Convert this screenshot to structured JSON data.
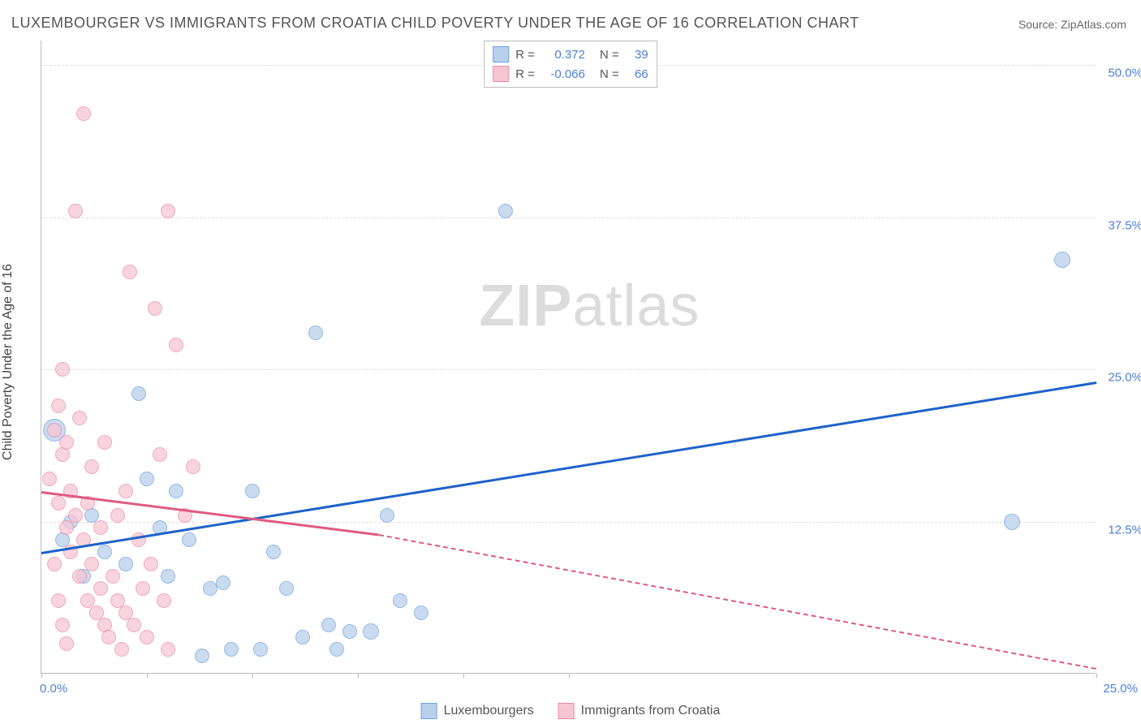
{
  "title": "LUXEMBOURGER VS IMMIGRANTS FROM CROATIA CHILD POVERTY UNDER THE AGE OF 16 CORRELATION CHART",
  "source": "Source: ZipAtlas.com",
  "watermark": {
    "bold": "ZIP",
    "light": "atlas"
  },
  "yaxis_label": "Child Poverty Under the Age of 16",
  "chart": {
    "type": "scatter",
    "xlim": [
      0,
      25
    ],
    "ylim": [
      0,
      52
    ],
    "y_gridlines": [
      12.5,
      25,
      37.5,
      50
    ],
    "y_tick_labels": [
      "12.5%",
      "25.0%",
      "37.5%",
      "50.0%"
    ],
    "x_ticks": [
      0,
      2.5,
      5,
      7.5,
      10,
      12.5,
      25
    ],
    "x_origin_label": "0.0%",
    "x_max_label": "25.0%",
    "bg_color": "#ffffff",
    "grid_color": "#dddddd",
    "axis_color": "#bbbbbb",
    "series": [
      {
        "name": "Luxembourgers",
        "fill": "#b9d0ec",
        "stroke": "#6fa3de",
        "trend_color": "#1f62c9",
        "R": "0.372",
        "N": "39",
        "trend": {
          "x1": 0,
          "y1": 10,
          "x2": 25,
          "y2": 24
        },
        "points": [
          {
            "x": 0.3,
            "y": 20,
            "r": 14
          },
          {
            "x": 0.5,
            "y": 11,
            "r": 9
          },
          {
            "x": 0.7,
            "y": 12.5,
            "r": 9
          },
          {
            "x": 1.0,
            "y": 8,
            "r": 9
          },
          {
            "x": 1.2,
            "y": 13,
            "r": 9
          },
          {
            "x": 1.5,
            "y": 10,
            "r": 9
          },
          {
            "x": 2.0,
            "y": 9,
            "r": 9
          },
          {
            "x": 2.3,
            "y": 23,
            "r": 9
          },
          {
            "x": 2.5,
            "y": 16,
            "r": 9
          },
          {
            "x": 2.8,
            "y": 12,
            "r": 9
          },
          {
            "x": 3.0,
            "y": 8,
            "r": 9
          },
          {
            "x": 3.2,
            "y": 15,
            "r": 9
          },
          {
            "x": 3.5,
            "y": 11,
            "r": 9
          },
          {
            "x": 3.8,
            "y": 1.5,
            "r": 9
          },
          {
            "x": 4.0,
            "y": 7,
            "r": 9
          },
          {
            "x": 4.3,
            "y": 7.5,
            "r": 9
          },
          {
            "x": 4.5,
            "y": 2,
            "r": 9
          },
          {
            "x": 5.0,
            "y": 15,
            "r": 9
          },
          {
            "x": 5.2,
            "y": 2,
            "r": 9
          },
          {
            "x": 5.5,
            "y": 10,
            "r": 9
          },
          {
            "x": 5.8,
            "y": 7,
            "r": 9
          },
          {
            "x": 6.2,
            "y": 3,
            "r": 9
          },
          {
            "x": 6.5,
            "y": 28,
            "r": 9
          },
          {
            "x": 6.8,
            "y": 4,
            "r": 9
          },
          {
            "x": 7.0,
            "y": 2,
            "r": 9
          },
          {
            "x": 7.3,
            "y": 3.5,
            "r": 9
          },
          {
            "x": 7.8,
            "y": 3.5,
            "r": 10
          },
          {
            "x": 8.2,
            "y": 13,
            "r": 9
          },
          {
            "x": 8.5,
            "y": 6,
            "r": 9
          },
          {
            "x": 9.0,
            "y": 5,
            "r": 9
          },
          {
            "x": 11.0,
            "y": 38,
            "r": 9
          },
          {
            "x": 23.0,
            "y": 12.5,
            "r": 10
          },
          {
            "x": 24.2,
            "y": 34,
            "r": 10
          }
        ]
      },
      {
        "name": "Immigrants from Croatia",
        "fill": "#f6c6d3",
        "stroke": "#e98fa9",
        "trend_color": "#e05a82",
        "R": "-0.066",
        "N": "66",
        "trend": {
          "x1": 0,
          "y1": 15,
          "x2": 8,
          "y2": 11.5
        },
        "trend_dash": {
          "x1": 8,
          "y1": 11.5,
          "x2": 25,
          "y2": 0.5
        },
        "points": [
          {
            "x": 0.2,
            "y": 16,
            "r": 9
          },
          {
            "x": 0.3,
            "y": 20,
            "r": 9
          },
          {
            "x": 0.4,
            "y": 22,
            "r": 9
          },
          {
            "x": 0.4,
            "y": 14,
            "r": 9
          },
          {
            "x": 0.5,
            "y": 18,
            "r": 9
          },
          {
            "x": 0.5,
            "y": 25,
            "r": 9
          },
          {
            "x": 0.6,
            "y": 19,
            "r": 9
          },
          {
            "x": 0.6,
            "y": 12,
            "r": 9
          },
          {
            "x": 0.7,
            "y": 10,
            "r": 9
          },
          {
            "x": 0.7,
            "y": 15,
            "r": 9
          },
          {
            "x": 0.8,
            "y": 38,
            "r": 9
          },
          {
            "x": 0.8,
            "y": 13,
            "r": 9
          },
          {
            "x": 0.9,
            "y": 21,
            "r": 9
          },
          {
            "x": 0.9,
            "y": 8,
            "r": 9
          },
          {
            "x": 1.0,
            "y": 46,
            "r": 9
          },
          {
            "x": 1.0,
            "y": 11,
            "r": 9
          },
          {
            "x": 1.1,
            "y": 6,
            "r": 9
          },
          {
            "x": 1.1,
            "y": 14,
            "r": 9
          },
          {
            "x": 1.2,
            "y": 9,
            "r": 9
          },
          {
            "x": 1.2,
            "y": 17,
            "r": 9
          },
          {
            "x": 1.3,
            "y": 5,
            "r": 9
          },
          {
            "x": 1.4,
            "y": 7,
            "r": 9
          },
          {
            "x": 1.4,
            "y": 12,
            "r": 9
          },
          {
            "x": 1.5,
            "y": 4,
            "r": 9
          },
          {
            "x": 1.5,
            "y": 19,
            "r": 9
          },
          {
            "x": 1.6,
            "y": 3,
            "r": 9
          },
          {
            "x": 1.7,
            "y": 8,
            "r": 9
          },
          {
            "x": 1.8,
            "y": 6,
            "r": 9
          },
          {
            "x": 1.8,
            "y": 13,
            "r": 9
          },
          {
            "x": 1.9,
            "y": 2,
            "r": 9
          },
          {
            "x": 2.0,
            "y": 15,
            "r": 9
          },
          {
            "x": 2.0,
            "y": 5,
            "r": 9
          },
          {
            "x": 2.1,
            "y": 33,
            "r": 9
          },
          {
            "x": 2.2,
            "y": 4,
            "r": 9
          },
          {
            "x": 2.3,
            "y": 11,
            "r": 9
          },
          {
            "x": 2.4,
            "y": 7,
            "r": 9
          },
          {
            "x": 2.5,
            "y": 3,
            "r": 9
          },
          {
            "x": 2.6,
            "y": 9,
            "r": 9
          },
          {
            "x": 2.7,
            "y": 30,
            "r": 9
          },
          {
            "x": 2.8,
            "y": 18,
            "r": 9
          },
          {
            "x": 2.9,
            "y": 6,
            "r": 9
          },
          {
            "x": 3.0,
            "y": 38,
            "r": 9
          },
          {
            "x": 3.0,
            "y": 2,
            "r": 9
          },
          {
            "x": 3.2,
            "y": 27,
            "r": 9
          },
          {
            "x": 3.4,
            "y": 13,
            "r": 9
          },
          {
            "x": 3.6,
            "y": 17,
            "r": 9
          },
          {
            "x": 0.3,
            "y": 9,
            "r": 9
          },
          {
            "x": 0.4,
            "y": 6,
            "r": 9
          },
          {
            "x": 0.5,
            "y": 4,
            "r": 9
          },
          {
            "x": 0.6,
            "y": 2.5,
            "r": 9
          }
        ]
      }
    ]
  },
  "legend_top": [
    {
      "series_idx": 0,
      "r_label": "R =",
      "n_label": "N ="
    },
    {
      "series_idx": 1,
      "r_label": "R =",
      "n_label": "N ="
    }
  ]
}
